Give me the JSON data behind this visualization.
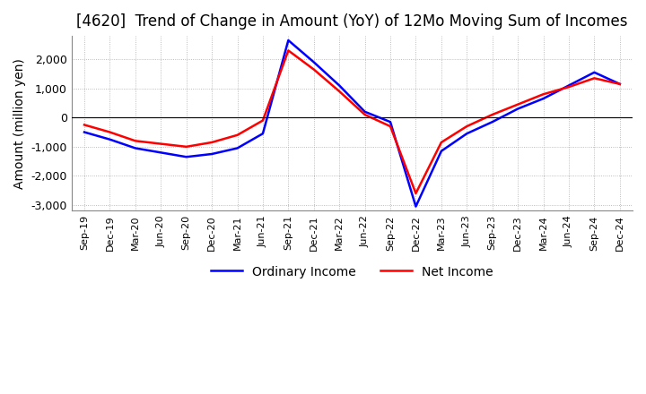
{
  "title": "[4620]  Trend of Change in Amount (YoY) of 12Mo Moving Sum of Incomes",
  "ylabel": "Amount (million yen)",
  "ylim": [
    -3200,
    2800
  ],
  "yticks": [
    -3000,
    -2000,
    -1000,
    0,
    1000,
    2000
  ],
  "x_labels": [
    "Sep-19",
    "Dec-19",
    "Mar-20",
    "Jun-20",
    "Sep-20",
    "Dec-20",
    "Mar-21",
    "Jun-21",
    "Sep-21",
    "Dec-21",
    "Mar-22",
    "Jun-22",
    "Sep-22",
    "Dec-22",
    "Mar-23",
    "Jun-23",
    "Sep-23",
    "Dec-23",
    "Mar-24",
    "Jun-24",
    "Sep-24",
    "Dec-24"
  ],
  "ordinary_income": [
    -500,
    -750,
    -1050,
    -1200,
    -1350,
    -1250,
    -1050,
    -550,
    2650,
    1900,
    1100,
    200,
    -150,
    -3050,
    -1150,
    -550,
    -150,
    300,
    650,
    1100,
    1550,
    1150
  ],
  "net_income": [
    -250,
    -500,
    -800,
    -900,
    -1000,
    -850,
    -600,
    -100,
    2300,
    1650,
    900,
    100,
    -300,
    -2600,
    -850,
    -300,
    100,
    450,
    800,
    1050,
    1350,
    1150
  ],
  "ordinary_color": "#0000ff",
  "net_color": "#ff0000",
  "line_width": 1.8,
  "background_color": "#ffffff",
  "grid_color": "#aaaaaa",
  "title_fontsize": 12,
  "label_fontsize": 10
}
